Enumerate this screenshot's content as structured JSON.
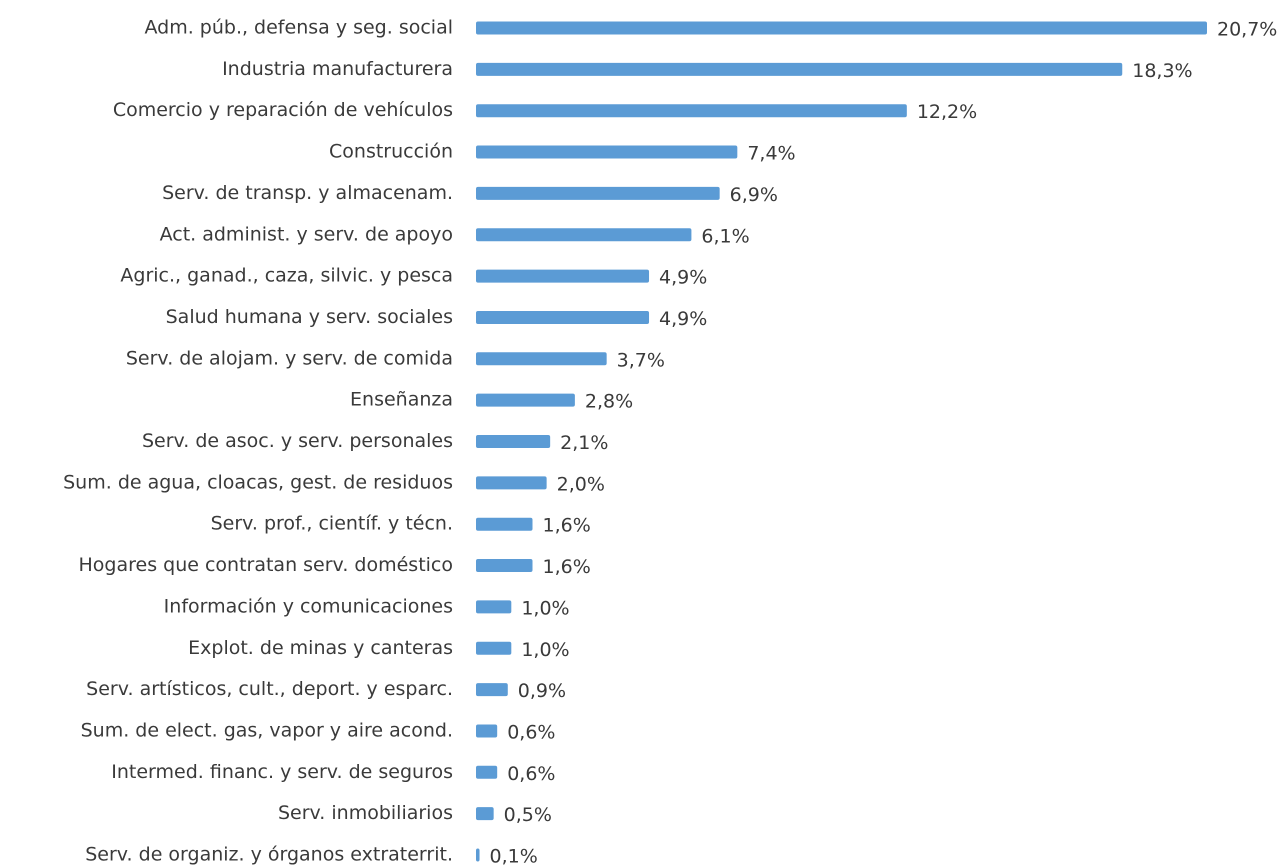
{
  "chart_data": {
    "type": "bar",
    "orientation": "horizontal",
    "color": "#5b9bd5",
    "categories": [
      "Adm. púb., defensa y seg. social",
      "Industria manufacturera",
      "Comercio y reparación de vehículos",
      "Construcción",
      "Serv. de transp. y almacenam.",
      "Act. administ. y serv. de apoyo",
      "Agric., ganad., caza, silvic. y pesca",
      "Salud humana y serv. sociales",
      "Serv. de alojam. y serv. de comida",
      "Enseñanza",
      "Serv. de asoc. y serv. personales",
      "Sum. de agua, cloacas, gest. de residuos",
      "Serv. prof., científ. y técn.",
      "Hogares que contratan serv. doméstico",
      "Información y comunicaciones",
      "Explot. de minas y canteras",
      "Serv. artísticos, cult., deport. y esparc.",
      "Sum. de elect. gas, vapor y aire acond.",
      "Intermed. financ. y serv. de seguros",
      "Serv. inmobiliarios",
      "Serv. de organiz. y órganos extraterrit."
    ],
    "values": [
      20.7,
      18.3,
      12.2,
      7.4,
      6.9,
      6.1,
      4.9,
      4.9,
      3.7,
      2.8,
      2.1,
      2.0,
      1.6,
      1.6,
      1.0,
      1.0,
      0.9,
      0.6,
      0.6,
      0.5,
      0.1
    ],
    "value_labels": [
      "20,7%",
      "18,3%",
      "12,2%",
      "7,4%",
      "6,9%",
      "6,1%",
      "4,9%",
      "4,9%",
      "3,7%",
      "2,8%",
      "2,1%",
      "2,0%",
      "1,6%",
      "1,6%",
      "1,0%",
      "1,0%",
      "0,9%",
      "0,6%",
      "0,6%",
      "0,5%",
      "0,1%"
    ]
  }
}
